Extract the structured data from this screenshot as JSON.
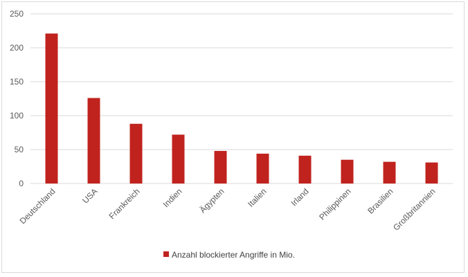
{
  "chart_data": {
    "type": "bar",
    "categories": [
      "Deutschland",
      "USA",
      "Frankreich",
      "Indien",
      "Ägypten",
      "Italien",
      "Irland",
      "Philippinen",
      "Brasilien",
      "Großbritannien"
    ],
    "series": [
      {
        "name": "Anzahl blockierter Angriffe in Mio.",
        "values": [
          221,
          126,
          88,
          72,
          48,
          44,
          41,
          35,
          32,
          31
        ],
        "color": "#c0231e"
      }
    ],
    "yticks": [
      0,
      50,
      100,
      150,
      200,
      250
    ],
    "ylim": [
      0,
      250
    ],
    "grid": true,
    "legend_position": "bottom",
    "gridline_color": "#d9d9d9"
  }
}
